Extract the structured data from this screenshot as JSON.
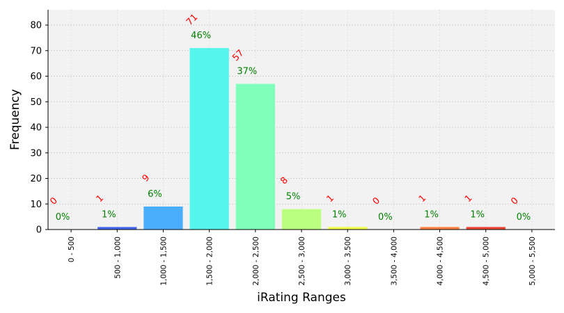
{
  "chart_data": {
    "type": "bar",
    "title": "",
    "xlabel": "iRating Ranges",
    "ylabel": "Frequency",
    "ylim": [
      0,
      86
    ],
    "yticks": [
      0,
      10,
      20,
      30,
      40,
      50,
      60,
      70,
      80
    ],
    "grid": true,
    "categories": [
      "0 - 500",
      "500 - 1,000",
      "1,000 - 1,500",
      "1,500 - 2,000",
      "2,000 - 2,500",
      "2,500 - 3,000",
      "3,000 - 3,500",
      "3,500 - 4,000",
      "4,000 - 4,500",
      "4,500 - 5,000",
      "5,000 - 5,500"
    ],
    "values": [
      0,
      1,
      9,
      71,
      57,
      8,
      1,
      0,
      1,
      1,
      0
    ],
    "count_labels": [
      "0",
      "1",
      "9",
      "71",
      "57",
      "8",
      "1",
      "0",
      "1",
      "1",
      "0"
    ],
    "percent_labels": [
      "0%",
      "1%",
      "6%",
      "46%",
      "37%",
      "5%",
      "1%",
      "0%",
      "1%",
      "1%",
      "0%"
    ],
    "colors": [
      "#4b00ff",
      "#4466ee",
      "#4aaeff",
      "#55f5ee",
      "#80ffbb",
      "#bbff80",
      "#eeff44",
      "#ffcc33",
      "#ff8040",
      "#ee4433",
      "#cc0000"
    ],
    "background_color": "#f2f2f2",
    "count_label_color": "#ff0000",
    "percent_label_color": "#008000"
  }
}
